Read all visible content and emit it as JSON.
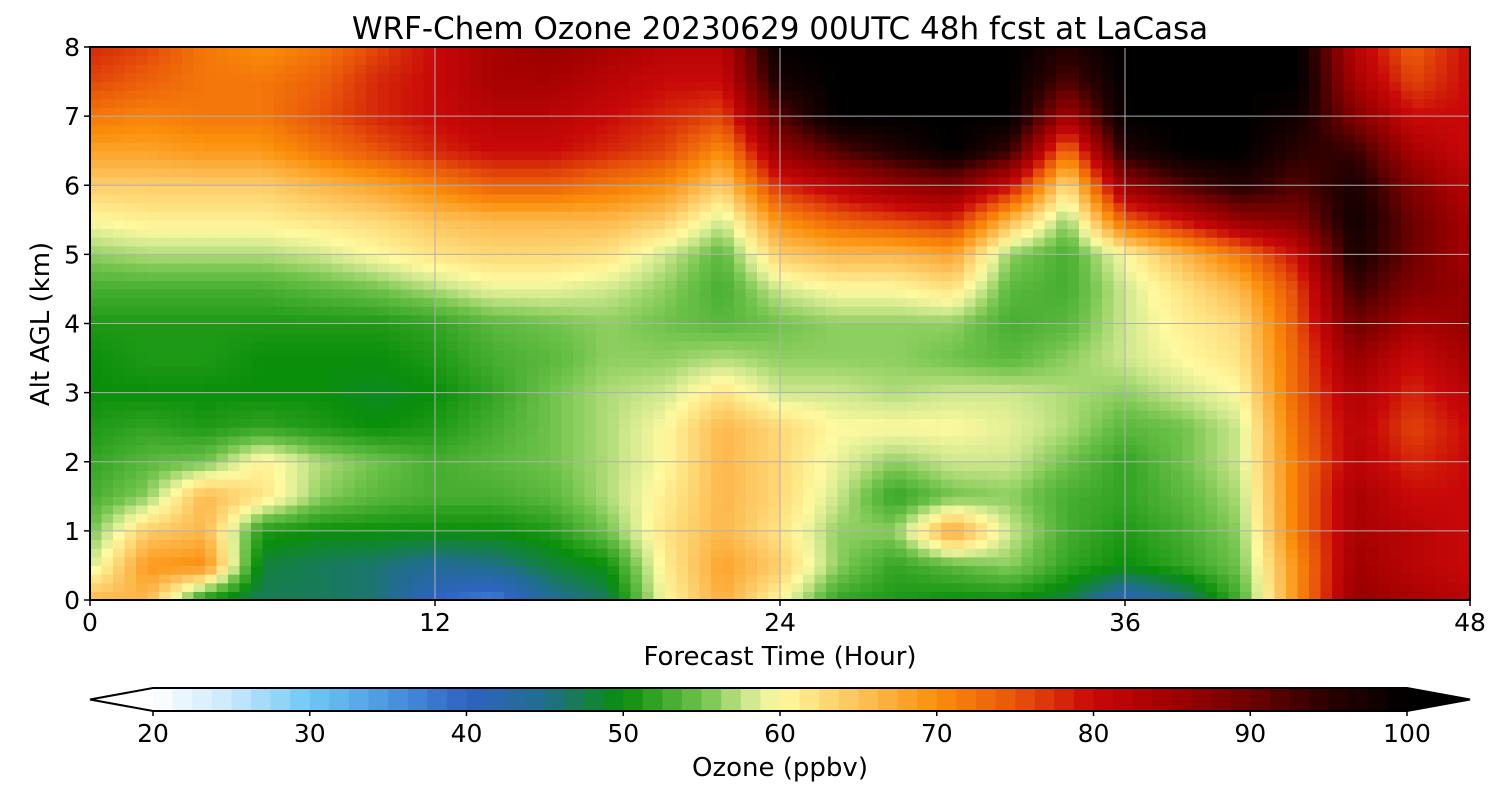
{
  "chart_data": {
    "type": "heatmap",
    "title": "WRF-Chem Ozone  20230629 00UTC 48h fcst at LaCasa",
    "xlabel": "Forecast Time (Hour)",
    "ylabel": "Alt AGL (km)",
    "x_ticks": [
      "0",
      "12",
      "24",
      "36",
      "48"
    ],
    "y_ticks": [
      "0",
      "1",
      "2",
      "3",
      "4",
      "5",
      "6",
      "7",
      "8"
    ],
    "xlim": [
      0,
      48
    ],
    "ylim": [
      0,
      8
    ],
    "grid": true,
    "x": [
      0,
      2,
      4,
      6,
      8,
      10,
      12,
      14,
      16,
      18,
      20,
      22,
      24,
      26,
      28,
      30,
      32,
      34,
      36,
      38,
      40,
      42,
      44,
      46,
      48
    ],
    "y": [
      0,
      0.5,
      1,
      1.5,
      2,
      2.5,
      3,
      3.5,
      4,
      4.5,
      5,
      5.5,
      6,
      6.5,
      7,
      7.5,
      8
    ],
    "z": [
      [
        66,
        66,
        50,
        47,
        47,
        46,
        40,
        37,
        44,
        47,
        60,
        67,
        60,
        52,
        51,
        50,
        50,
        48,
        41,
        45,
        53,
        70,
        86,
        84,
        82
      ],
      [
        58,
        69,
        70,
        48,
        47,
        46,
        44,
        45,
        48,
        50,
        61,
        68,
        64,
        56,
        52,
        54,
        56,
        52,
        50,
        52,
        55,
        70,
        85,
        82,
        80
      ],
      [
        55,
        64,
        66,
        51,
        50,
        50,
        50,
        50,
        51,
        55,
        62,
        66,
        62,
        56,
        56,
        68,
        58,
        53,
        51,
        53,
        56,
        72,
        84,
        82,
        80
      ],
      [
        53,
        56,
        66,
        62,
        56,
        54,
        53,
        53,
        54,
        57,
        61,
        66,
        63,
        58,
        52,
        55,
        56,
        53,
        52,
        54,
        57,
        72,
        84,
        80,
        80
      ],
      [
        52,
        54,
        55,
        61,
        57,
        55,
        53,
        54,
        55,
        57,
        60,
        66,
        63,
        59,
        56,
        58,
        58,
        55,
        52,
        55,
        58,
        72,
        82,
        78,
        80
      ],
      [
        51,
        52,
        51,
        52,
        51,
        50,
        51,
        53,
        55,
        57,
        60,
        66,
        63,
        60,
        60,
        60,
        59,
        57,
        54,
        55,
        58,
        73,
        82,
        76,
        80
      ],
      [
        50,
        50,
        50,
        50,
        50,
        49,
        50,
        52,
        55,
        57,
        58,
        62,
        58,
        58,
        57,
        58,
        58,
        57,
        56,
        58,
        60,
        74,
        83,
        78,
        82
      ],
      [
        50,
        51,
        51,
        50,
        50,
        50,
        51,
        53,
        54,
        56,
        56,
        57,
        56,
        56,
        56,
        55,
        54,
        56,
        58,
        60,
        62,
        74,
        86,
        80,
        84
      ],
      [
        51,
        51,
        51,
        51,
        51,
        51,
        52,
        54,
        55,
        56,
        55,
        54,
        55,
        56,
        56,
        56,
        53,
        54,
        58,
        61,
        63,
        75,
        90,
        84,
        86
      ],
      [
        53,
        53,
        53,
        53,
        54,
        55,
        57,
        59,
        59,
        58,
        56,
        53,
        58,
        60,
        60,
        62,
        54,
        53,
        58,
        62,
        66,
        76,
        94,
        88,
        86
      ],
      [
        56,
        57,
        57,
        57,
        58,
        60,
        62,
        63,
        63,
        62,
        58,
        54,
        64,
        66,
        66,
        68,
        56,
        53,
        60,
        66,
        72,
        80,
        97,
        90,
        84
      ],
      [
        60,
        61,
        61,
        61,
        62,
        63,
        65,
        66,
        66,
        66,
        64,
        58,
        70,
        74,
        76,
        78,
        66,
        56,
        74,
        80,
        86,
        88,
        98,
        90,
        84
      ],
      [
        64,
        64,
        64,
        64,
        66,
        68,
        71,
        74,
        74,
        72,
        70,
        64,
        78,
        82,
        86,
        88,
        80,
        62,
        86,
        92,
        96,
        92,
        97,
        88,
        82
      ],
      [
        68,
        68,
        69,
        69,
        72,
        75,
        78,
        80,
        80,
        78,
        76,
        70,
        86,
        92,
        96,
        100,
        94,
        72,
        96,
        100,
        100,
        95,
        94,
        84,
        80
      ],
      [
        72,
        71,
        72,
        72,
        75,
        78,
        80,
        82,
        82,
        80,
        78,
        76,
        92,
        100,
        100,
        100,
        100,
        84,
        100,
        100,
        100,
        98,
        88,
        80,
        80
      ],
      [
        76,
        74,
        72,
        72,
        74,
        78,
        80,
        84,
        84,
        82,
        80,
        80,
        97,
        100,
        100,
        100,
        100,
        92,
        100,
        100,
        100,
        100,
        84,
        76,
        80
      ],
      [
        78,
        76,
        72,
        70,
        72,
        76,
        80,
        84,
        86,
        84,
        82,
        82,
        100,
        100,
        100,
        100,
        100,
        96,
        100,
        100,
        100,
        100,
        82,
        74,
        80
      ]
    ],
    "colorbar": {
      "label": "Ozone  (ppbv)",
      "min": 20,
      "max": 100,
      "ticks": [
        "20",
        "30",
        "40",
        "50",
        "60",
        "70",
        "80",
        "90",
        "100"
      ],
      "extend": "both",
      "stops": [
        [
          20,
          "#ffffff"
        ],
        [
          25,
          "#c8e8fb"
        ],
        [
          30,
          "#6ec8f5"
        ],
        [
          35,
          "#4a98e0"
        ],
        [
          40,
          "#2f63c2"
        ],
        [
          45,
          "#206e8c"
        ],
        [
          50,
          "#0a8f0a"
        ],
        [
          55,
          "#6ec24a"
        ],
        [
          58,
          "#cfe88e"
        ],
        [
          60,
          "#fffaa0"
        ],
        [
          65,
          "#fdc25a"
        ],
        [
          70,
          "#fb8e0a"
        ],
        [
          75,
          "#e8550a"
        ],
        [
          80,
          "#c80808"
        ],
        [
          85,
          "#a00000"
        ],
        [
          90,
          "#6e0000"
        ],
        [
          95,
          "#2a0000"
        ],
        [
          100,
          "#000000"
        ]
      ]
    }
  }
}
